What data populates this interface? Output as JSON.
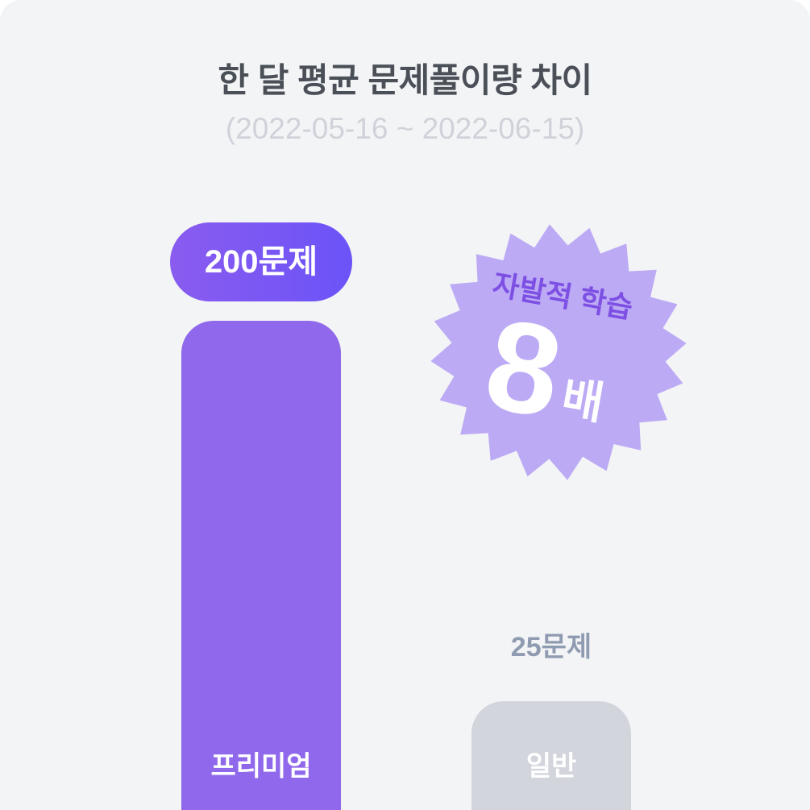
{
  "chart_data": {
    "type": "bar",
    "title": "한 달 평균 문제풀이량 차이",
    "subtitle": "(2022-05-16 ~ 2022-06-15)",
    "categories": [
      "프리미엄",
      "일반"
    ],
    "values": [
      200,
      25
    ],
    "unit": "문제",
    "xlabel": "",
    "ylabel": "",
    "grid": false,
    "legend": "none",
    "colors": [
      "#9068eb",
      "#d2d5dc"
    ]
  },
  "badge": {
    "label": "자발적 학습",
    "value": "8",
    "unit": "배",
    "color": "#bcaaf5"
  }
}
